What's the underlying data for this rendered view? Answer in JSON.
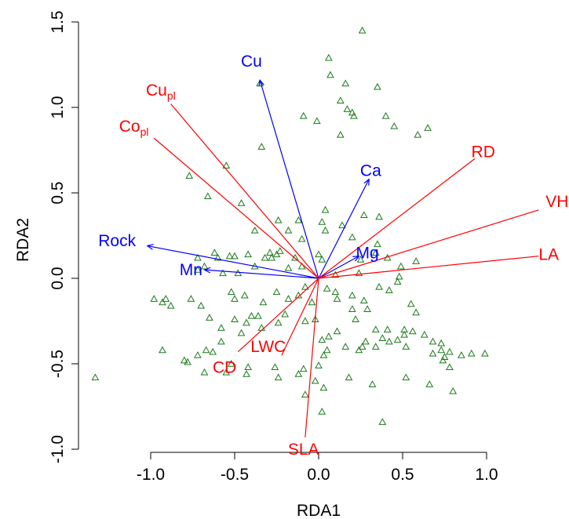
{
  "chart_data": {
    "type": "scatter",
    "title": "",
    "xlabel": "RDA1",
    "ylabel": "RDA2",
    "xlim": [
      -1.4,
      1.05
    ],
    "ylim": [
      -1.05,
      1.5
    ],
    "x_ticks": [
      "-1.0",
      "-0.5",
      "0.0",
      "0.5",
      "1.0"
    ],
    "x_tick_values": [
      -1.0,
      -0.5,
      0.0,
      0.5,
      1.0
    ],
    "y_ticks": [
      "-1.0",
      "-0.5",
      "0.0",
      "0.5",
      "1.0",
      "1.5"
    ],
    "y_tick_values": [
      -1.0,
      -0.5,
      0.0,
      0.5,
      1.0,
      1.5
    ],
    "grid": false,
    "colors": {
      "points": "#1a7a1a",
      "blue_vectors": "#0000ff",
      "red_vectors": "#ff0000"
    },
    "points_marker": "open-triangle",
    "points": [
      [
        -1.33,
        -0.58
      ],
      [
        0.26,
        1.45
      ],
      [
        0.06,
        1.29
      ],
      [
        0.07,
        1.19
      ],
      [
        0.16,
        1.14
      ],
      [
        0.35,
        1.12
      ],
      [
        0.13,
        1.04
      ],
      [
        0.17,
        0.99
      ],
      [
        0.2,
        0.97
      ],
      [
        0.21,
        0.95
      ],
      [
        0.4,
        0.95
      ],
      [
        -0.09,
        0.95
      ],
      [
        -0.01,
        0.92
      ],
      [
        0.45,
        0.89
      ],
      [
        0.65,
        0.88
      ],
      [
        0.59,
        0.84
      ],
      [
        0.13,
        0.84
      ],
      [
        -0.35,
        1.14
      ],
      [
        -0.34,
        0.77
      ],
      [
        -0.55,
        0.66
      ],
      [
        -0.77,
        0.6
      ],
      [
        -0.66,
        0.48
      ],
      [
        -0.46,
        0.44
      ],
      [
        0.04,
        0.4
      ],
      [
        0.27,
        0.37
      ],
      [
        -0.24,
        0.34
      ],
      [
        -0.12,
        0.34
      ],
      [
        0.02,
        0.33
      ],
      [
        0.14,
        0.31
      ],
      [
        0.36,
        0.36
      ],
      [
        -0.38,
        0.28
      ],
      [
        -0.18,
        0.28
      ],
      [
        0.04,
        0.28
      ],
      [
        -0.1,
        0.23
      ],
      [
        0.2,
        0.24
      ],
      [
        0.35,
        0.2
      ],
      [
        0.34,
        0.15
      ],
      [
        -0.62,
        0.15
      ],
      [
        -0.72,
        0.12
      ],
      [
        -0.53,
        0.13
      ],
      [
        -0.6,
        0.12
      ],
      [
        -0.5,
        0.13
      ],
      [
        -0.42,
        0.14
      ],
      [
        -0.32,
        0.12
      ],
      [
        -0.29,
        0.15
      ],
      [
        -0.28,
        0.12
      ],
      [
        -0.25,
        0.14
      ],
      [
        -0.23,
        0.16
      ],
      [
        -0.14,
        0.12
      ],
      [
        0.0,
        0.14
      ],
      [
        0.02,
        0.11
      ],
      [
        -0.72,
        0.05
      ],
      [
        -0.68,
        0.07
      ],
      [
        -0.57,
        0.03
      ],
      [
        -0.48,
        0.03
      ],
      [
        -0.38,
        0.07
      ],
      [
        -0.18,
        0.06
      ],
      [
        -0.1,
        0.07
      ],
      [
        0.1,
        0.02
      ],
      [
        0.24,
        0.03
      ],
      [
        0.48,
        0.01
      ],
      [
        0.49,
        0.07
      ],
      [
        0.58,
        0.1
      ],
      [
        0.41,
        0.12
      ],
      [
        0.25,
        0.11
      ],
      [
        -0.98,
        -0.12
      ],
      [
        -0.91,
        -0.12
      ],
      [
        -0.93,
        -0.14
      ],
      [
        -0.88,
        -0.16
      ],
      [
        -0.76,
        -0.12
      ],
      [
        -0.52,
        -0.08
      ],
      [
        -0.5,
        -0.12
      ],
      [
        -0.44,
        -0.1
      ],
      [
        -0.25,
        -0.08
      ],
      [
        -0.12,
        -0.1
      ],
      [
        -0.18,
        -0.12
      ],
      [
        -0.08,
        -0.05
      ],
      [
        0.05,
        -0.06
      ],
      [
        0.1,
        -0.08
      ],
      [
        0.2,
        -0.1
      ],
      [
        0.27,
        -0.13
      ],
      [
        0.36,
        -0.05
      ],
      [
        0.42,
        -0.07
      ],
      [
        0.47,
        -0.02
      ],
      [
        -0.7,
        -0.16
      ],
      [
        -0.33,
        -0.14
      ],
      [
        -0.04,
        -0.14
      ],
      [
        0.11,
        -0.12
      ],
      [
        0.2,
        -0.18
      ],
      [
        0.29,
        -0.18
      ],
      [
        0.55,
        -0.15
      ],
      [
        0.58,
        -0.2
      ],
      [
        0.51,
        -0.3
      ],
      [
        0.22,
        -0.24
      ],
      [
        -0.4,
        -0.22
      ],
      [
        -0.5,
        -0.24
      ],
      [
        -0.65,
        -0.23
      ],
      [
        -0.58,
        -0.29
      ],
      [
        -0.43,
        -0.26
      ],
      [
        -0.36,
        -0.22
      ],
      [
        -0.24,
        -0.26
      ],
      [
        -0.2,
        -0.21
      ],
      [
        -0.08,
        -0.25
      ],
      [
        -0.02,
        -0.24
      ],
      [
        0.02,
        -0.36
      ],
      [
        0.06,
        -0.34
      ],
      [
        0.11,
        -0.31
      ],
      [
        0.16,
        -0.4
      ],
      [
        0.26,
        -0.4
      ],
      [
        0.34,
        -0.4
      ],
      [
        0.38,
        -0.35
      ],
      [
        0.42,
        -0.37
      ],
      [
        0.47,
        -0.36
      ],
      [
        0.51,
        -0.33
      ],
      [
        0.68,
        -0.37
      ],
      [
        0.73,
        -0.38
      ],
      [
        0.73,
        -0.42
      ],
      [
        0.75,
        -0.46
      ],
      [
        0.78,
        -0.43
      ],
      [
        0.85,
        -0.45
      ],
      [
        0.91,
        -0.44
      ],
      [
        0.99,
        -0.44
      ],
      [
        -0.34,
        -0.29
      ],
      [
        -0.46,
        -0.32
      ],
      [
        -0.58,
        -0.37
      ],
      [
        -0.67,
        -0.42
      ],
      [
        -0.72,
        -0.45
      ],
      [
        -0.78,
        -0.49
      ],
      [
        -0.63,
        -0.43
      ],
      [
        -0.52,
        -0.5
      ],
      [
        -0.42,
        -0.52
      ],
      [
        -0.26,
        -0.52
      ],
      [
        -0.12,
        -0.56
      ],
      [
        -0.09,
        -0.53
      ],
      [
        0.0,
        -0.51
      ],
      [
        0.03,
        -0.45
      ],
      [
        0.05,
        -0.42
      ],
      [
        0.24,
        -0.42
      ],
      [
        0.28,
        -0.37
      ],
      [
        0.34,
        -0.3
      ],
      [
        0.41,
        -0.3
      ],
      [
        0.52,
        -0.4
      ],
      [
        0.56,
        -0.31
      ],
      [
        0.63,
        -0.33
      ],
      [
        0.68,
        -0.44
      ],
      [
        0.74,
        -0.48
      ],
      [
        0.78,
        -0.52
      ],
      [
        0.52,
        -0.58
      ],
      [
        0.66,
        -0.62
      ],
      [
        0.8,
        -0.66
      ],
      [
        -0.93,
        -0.42
      ],
      [
        -0.8,
        -0.48
      ],
      [
        -0.68,
        -0.55
      ],
      [
        -0.55,
        -0.55
      ],
      [
        -0.43,
        -0.56
      ],
      [
        -0.24,
        -0.58
      ],
      [
        -0.02,
        -0.6
      ],
      [
        0.03,
        -0.64
      ],
      [
        0.18,
        -0.58
      ],
      [
        0.32,
        -0.62
      ],
      [
        0.38,
        -0.84
      ],
      [
        -0.08,
        -0.68
      ],
      [
        0.02,
        -0.78
      ]
    ],
    "vectors": [
      {
        "label": "Cu",
        "sub": "",
        "color": "blue",
        "x": -0.35,
        "y": 1.16,
        "lx": -0.4,
        "ly": 1.27
      },
      {
        "label": "Ca",
        "sub": "",
        "color": "blue",
        "x": 0.3,
        "y": 0.58,
        "lx": 0.31,
        "ly": 0.63
      },
      {
        "label": "Mg",
        "sub": "",
        "color": "blue",
        "x": 0.24,
        "y": 0.13,
        "lx": 0.29,
        "ly": 0.15
      },
      {
        "label": "Rock",
        "sub": "",
        "color": "blue",
        "x": -1.02,
        "y": 0.19,
        "lx": -1.2,
        "ly": 0.22
      },
      {
        "label": "Mn",
        "sub": "",
        "color": "blue",
        "x": -0.68,
        "y": 0.05,
        "lx": -0.76,
        "ly": 0.05
      },
      {
        "label": "Cu",
        "sub": "pl",
        "color": "red",
        "x": -0.88,
        "y": 1.02,
        "lx": -0.94,
        "ly": 1.1
      },
      {
        "label": "Co",
        "sub": "pl",
        "color": "red",
        "x": -0.98,
        "y": 0.82,
        "lx": -1.1,
        "ly": 0.89
      },
      {
        "label": "RD",
        "sub": "",
        "color": "red",
        "x": 0.93,
        "y": 0.7,
        "lx": 0.98,
        "ly": 0.74
      },
      {
        "label": "VH",
        "sub": "",
        "color": "red",
        "x": 1.31,
        "y": 0.4,
        "lx": 1.42,
        "ly": 0.45
      },
      {
        "label": "LA",
        "sub": "",
        "color": "red",
        "x": 1.31,
        "y": 0.13,
        "lx": 1.37,
        "ly": 0.14
      },
      {
        "label": "CD",
        "sub": "",
        "color": "red",
        "x": -0.48,
        "y": -0.43,
        "lx": -0.56,
        "ly": -0.52
      },
      {
        "label": "LWC",
        "sub": "",
        "color": "red",
        "x": -0.22,
        "y": -0.45,
        "lx": -0.3,
        "ly": -0.4
      },
      {
        "label": "SLA",
        "sub": "",
        "color": "red",
        "x": -0.08,
        "y": -0.93,
        "lx": -0.09,
        "ly": -1.0
      }
    ]
  }
}
